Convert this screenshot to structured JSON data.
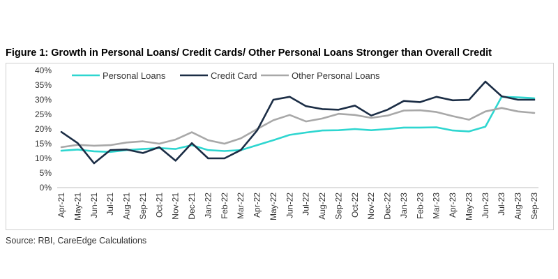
{
  "header": {
    "title": "Figure 1: Growth in Personal Loans/ Credit Cards/ Other Personal Loans Stronger than Overall Credit"
  },
  "footer": {
    "source": "Source: RBI, CareEdge Calculations"
  },
  "chart_data": {
    "type": "line",
    "title": "",
    "xlabel": "",
    "ylabel": "",
    "ylim": [
      0,
      40
    ],
    "y_ticks": [
      "0%",
      "5%",
      "10%",
      "15%",
      "20%",
      "25%",
      "30%",
      "35%",
      "40%"
    ],
    "grid": false,
    "legend_position": "top",
    "categories": [
      "Apr-21",
      "May-21",
      "Jun-21",
      "Jul-21",
      "Aug-21",
      "Sep-21",
      "Oct-21",
      "Nov-21",
      "Dec-21",
      "Jan-22",
      "Feb-22",
      "Mar-22",
      "Apr-22",
      "May-22",
      "Jun-22",
      "Jul-22",
      "Aug-22",
      "Sep-22",
      "Oct-22",
      "Nov-22",
      "Dec-22",
      "Jan-23",
      "Feb-23",
      "Mar-23",
      "Apr-23",
      "May-23",
      "Jun-23",
      "Jul-23",
      "Aug-23",
      "Sep-23"
    ],
    "series": [
      {
        "name": "Personal Loans",
        "color": "#2ed6d0",
        "values": [
          12.6,
          13.0,
          12.4,
          12.2,
          12.8,
          13.2,
          13.5,
          13.2,
          14.5,
          12.8,
          12.5,
          12.8,
          14.5,
          16.2,
          18.0,
          18.8,
          19.5,
          19.6,
          20.0,
          19.6,
          20.0,
          20.5,
          20.5,
          20.6,
          19.5,
          19.2,
          20.8,
          31.0,
          30.8,
          30.5
        ]
      },
      {
        "name": "Credit Card",
        "color": "#1b2d45",
        "values": [
          19.0,
          15.2,
          8.3,
          12.8,
          13.0,
          11.8,
          13.8,
          9.2,
          15.2,
          10.0,
          10.0,
          12.8,
          19.5,
          30.0,
          31.0,
          27.8,
          26.8,
          26.6,
          28.0,
          24.6,
          26.6,
          29.6,
          29.2,
          31.0,
          29.8,
          30.0,
          36.2,
          31.2,
          30.0,
          30.0
        ]
      },
      {
        "name": "Other Personal Loans",
        "color": "#a8a8a8",
        "values": [
          13.8,
          14.6,
          14.3,
          14.5,
          15.4,
          15.8,
          15.0,
          16.4,
          18.9,
          16.2,
          15.0,
          16.8,
          20.0,
          23.0,
          24.8,
          22.6,
          23.6,
          25.2,
          24.8,
          23.8,
          24.6,
          26.3,
          26.4,
          25.8,
          24.4,
          23.2,
          26.0,
          27.2,
          26.0,
          25.5
        ]
      }
    ]
  }
}
